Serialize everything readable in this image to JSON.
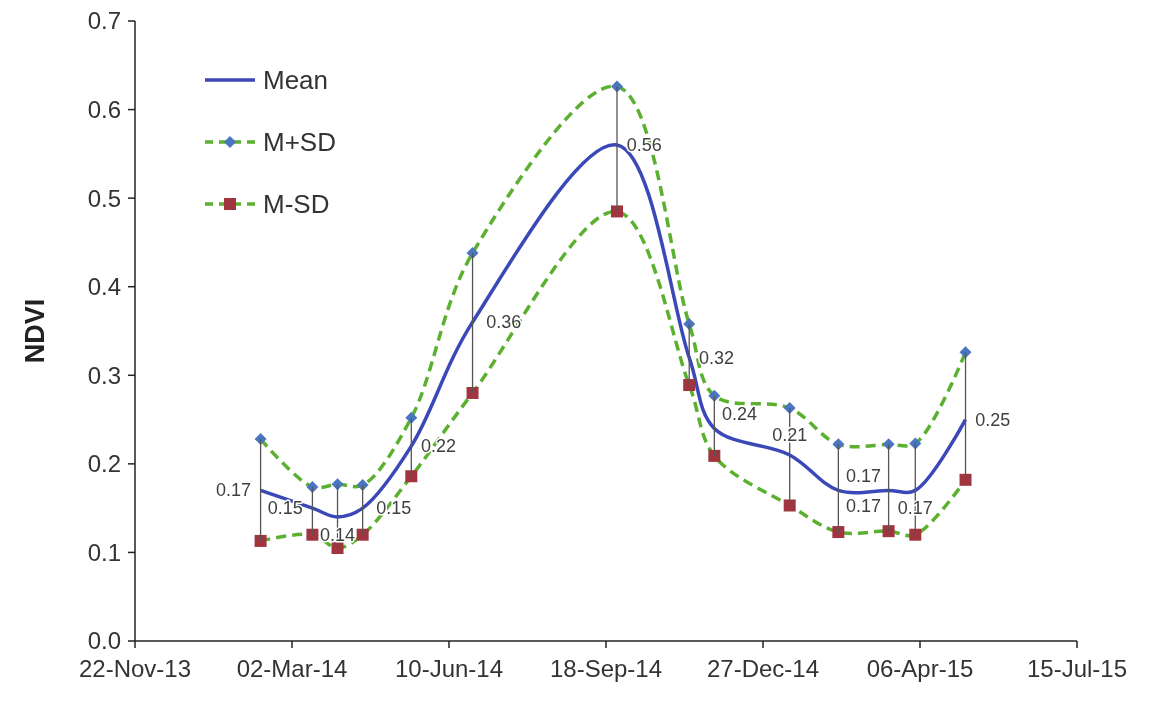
{
  "chart_data": {
    "type": "line",
    "ylabel": "NDVI",
    "x": [
      "2014-02-10",
      "2014-03-15",
      "2014-03-31",
      "2014-04-16",
      "2014-05-17",
      "2014-06-25",
      "2014-09-25",
      "2014-11-10",
      "2014-11-26",
      "2015-01-13",
      "2015-02-13",
      "2015-03-17",
      "2015-04-03",
      "2015-05-05"
    ],
    "series": [
      {
        "name": "Mean",
        "color": "#3a48b8",
        "line_style": "solid",
        "values": [
          0.17,
          0.15,
          0.14,
          0.15,
          0.22,
          0.36,
          0.56,
          0.32,
          0.24,
          0.21,
          0.17,
          0.17,
          0.17,
          0.25
        ],
        "value_labels": [
          "0.17",
          "0.15",
          "0.14",
          "0.15",
          "0.22",
          "0.36",
          "0.56",
          "0.32",
          "0.24",
          "0.21",
          "0.17",
          "0.17",
          "0.17",
          "0.25"
        ],
        "errors": [
          [
            0.113,
            0.228
          ],
          [
            0.12,
            0.174
          ],
          [
            0.105,
            0.177
          ],
          [
            0.12,
            0.176
          ],
          [
            0.186,
            0.252
          ],
          [
            0.28,
            0.438
          ],
          [
            0.485,
            0.626
          ],
          [
            0.289,
            0.358
          ],
          [
            0.209,
            0.277
          ],
          [
            0.153,
            0.263
          ],
          [
            0.123,
            0.222
          ],
          [
            0.124,
            0.222
          ],
          [
            0.12,
            0.223
          ],
          [
            0.182,
            0.326
          ]
        ]
      },
      {
        "name": "M+SD",
        "color": "#5cb030",
        "colors": [
          "#4a75c0",
          "#4a75c0",
          "#4a75c0",
          "#4a75c0",
          "#4a75c0",
          "#4a75c0",
          "#4a75c0",
          "#4a75c0",
          "#4a75c0",
          "#4a75c0",
          "#4a75c0",
          "#4a75c0",
          "#4a75c0",
          "#4a75c0"
        ],
        "marker": "diamond",
        "line_style": "dashed",
        "values": [
          0.228,
          0.174,
          0.177,
          0.176,
          0.252,
          0.438,
          0.626,
          0.358,
          0.277,
          0.263,
          0.222,
          0.222,
          0.223,
          0.326
        ]
      },
      {
        "name": "M-SD",
        "color": "#5cb030",
        "colors": [
          "#a0353f",
          "#a0353f",
          "#a0353f",
          "#a0353f",
          "#a0353f",
          "#a0353f",
          "#a0353f",
          "#a0353f",
          "#a0353f",
          "#a0353f",
          "#a0353f",
          "#a0353f",
          "#a0353f",
          "#a0353f"
        ],
        "marker": "square",
        "line_style": "dashed",
        "values": [
          0.113,
          0.12,
          0.105,
          0.12,
          0.186,
          0.28,
          0.485,
          0.289,
          0.209,
          0.153,
          0.123,
          0.124,
          0.12,
          0.182
        ]
      }
    ],
    "xlim": [
      "2013-11-22",
      "2015-07-15"
    ],
    "xticks": [
      {
        "value": "2013-11-22",
        "label": "22-Nov-13"
      },
      {
        "value": "2014-03-02",
        "label": "02-Mar-14"
      },
      {
        "value": "2014-06-10",
        "label": "10-Jun-14"
      },
      {
        "value": "2014-09-18",
        "label": "18-Sep-14"
      },
      {
        "value": "2014-12-27",
        "label": "27-Dec-14"
      },
      {
        "value": "2015-04-06",
        "label": "06-Apr-15"
      },
      {
        "value": "2015-07-15",
        "label": "15-Jul-15"
      }
    ],
    "ylim": [
      0,
      0.7
    ],
    "yticks": [
      {
        "value": 0,
        "label": "0.0"
      },
      {
        "value": 0.1,
        "label": "0.1"
      },
      {
        "value": 0.2,
        "label": "0.2"
      },
      {
        "value": 0.3,
        "label": "0.3"
      },
      {
        "value": 0.4,
        "label": "0.4"
      },
      {
        "value": 0.5,
        "label": "0.5"
      },
      {
        "value": 0.6,
        "label": "0.6"
      },
      {
        "value": 0.7,
        "label": "0.7"
      }
    ],
    "grid": false,
    "legend": "top left"
  }
}
